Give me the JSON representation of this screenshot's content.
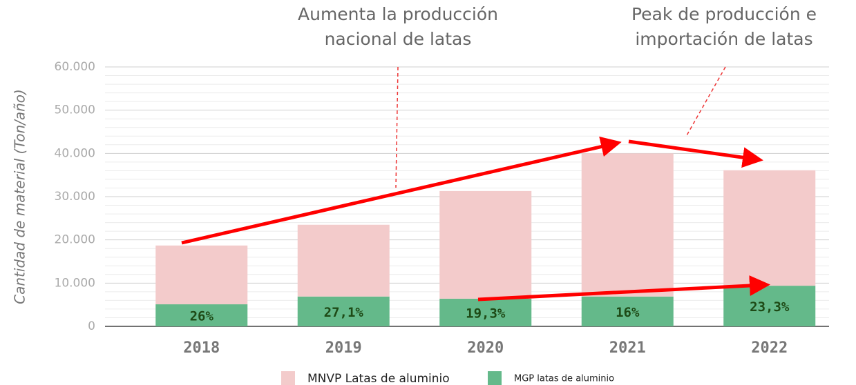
{
  "chart_data": {
    "type": "stacked_bar",
    "ylabel": "Cantidad de material (Ton/año)",
    "categories": [
      "2018",
      "2019",
      "2020",
      "2021",
      "2022"
    ],
    "series": [
      {
        "name": "MGP latas de aluminio",
        "color": "#64b98a",
        "values": [
          5100,
          6900,
          6400,
          6900,
          9400
        ],
        "share_labels": [
          "26%",
          "27,1%",
          "19,3%",
          "16%",
          "23,3%"
        ]
      },
      {
        "name": "MNVP Latas de aluminio",
        "color": "#f3cbcb",
        "values": [
          13600,
          16600,
          24900,
          33100,
          26700
        ]
      }
    ],
    "ylim": [
      0,
      60000
    ],
    "yticks": [
      0,
      {
        "value": 10000,
        "label": "10.000"
      },
      {
        "value": 20000,
        "label": "20.000"
      },
      {
        "value": 30000,
        "label": "30.000"
      },
      {
        "value": 40000,
        "label": "40.000"
      },
      {
        "value": 50000,
        "label": "50.000"
      },
      {
        "value": 60000,
        "label": "60.000"
      }
    ],
    "yminor": [
      2000,
      4000,
      6000,
      8000,
      12000,
      14000,
      16000,
      18000,
      22000,
      24000,
      26000,
      28000,
      32000,
      34000,
      36000,
      38000,
      42000,
      44000,
      46000,
      48000,
      52000,
      54000,
      56000,
      58000
    ],
    "grid": true,
    "annotations": [
      "Aumenta la producción",
      "nacional de latas",
      "Peak de producción e",
      "importación de latas"
    ]
  }
}
